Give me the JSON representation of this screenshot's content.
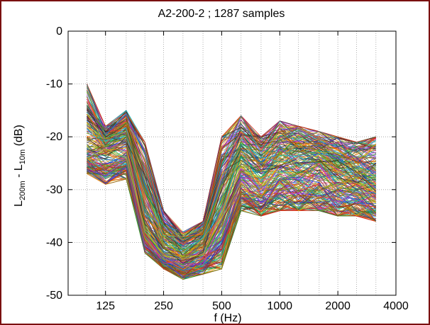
{
  "chart_data": {
    "type": "line",
    "title": "A2-200-2 ; 1287 samples",
    "xlabel": "f (Hz)",
    "ylabel": {
      "base": "L",
      "sub1": "200m",
      "middle": " - L",
      "sub2": "10m",
      "unit": " (dB)"
    },
    "x_scale": "log2",
    "xlim": [
      80,
      4000
    ],
    "ylim": [
      -50,
      0
    ],
    "x_ticks": [
      125,
      250,
      500,
      1000,
      2000,
      4000
    ],
    "x_tick_labels": [
      "125",
      "250",
      "500",
      "1000",
      "2000",
      "4000"
    ],
    "y_ticks": [
      0,
      -10,
      -20,
      -30,
      -40,
      -50
    ],
    "y_tick_labels": [
      "0",
      "-10",
      "-20",
      "-30",
      "-40",
      "-50"
    ],
    "x_minor_grid": [
      100,
      160,
      200,
      315,
      400,
      630,
      800,
      1250,
      1600,
      2500,
      3150
    ],
    "grid": "dotted, both axes",
    "x": [
      100,
      125,
      160,
      200,
      250,
      315,
      400,
      500,
      630,
      800,
      1000,
      1250,
      1600,
      2000,
      2500,
      3150
    ],
    "series_summary": {
      "sample_count": 1287,
      "median": [
        -22,
        -22,
        -21,
        -36,
        -42,
        -43,
        -41,
        -34,
        -25,
        -28,
        -25,
        -25,
        -25,
        -27,
        -28,
        -29
      ],
      "upper_envelope": [
        -10,
        -18,
        -15,
        -21,
        -34,
        -38,
        -36,
        -20,
        -16,
        -20,
        -17,
        -18,
        -19,
        -20,
        -21,
        -20
      ],
      "lower_envelope": [
        -27,
        -29,
        -28,
        -42,
        -45,
        -47,
        -46,
        -45,
        -34,
        -35,
        -34,
        -34,
        -34,
        -35,
        -35,
        -36
      ]
    },
    "colors": [
      "#1f3dd6",
      "#17a44a",
      "#e01d1d",
      "#12b7c9",
      "#b32bd2",
      "#c9c21a",
      "#2d2d2d",
      "#ff7a00",
      "#6b8e23",
      "#8b4513"
    ]
  }
}
